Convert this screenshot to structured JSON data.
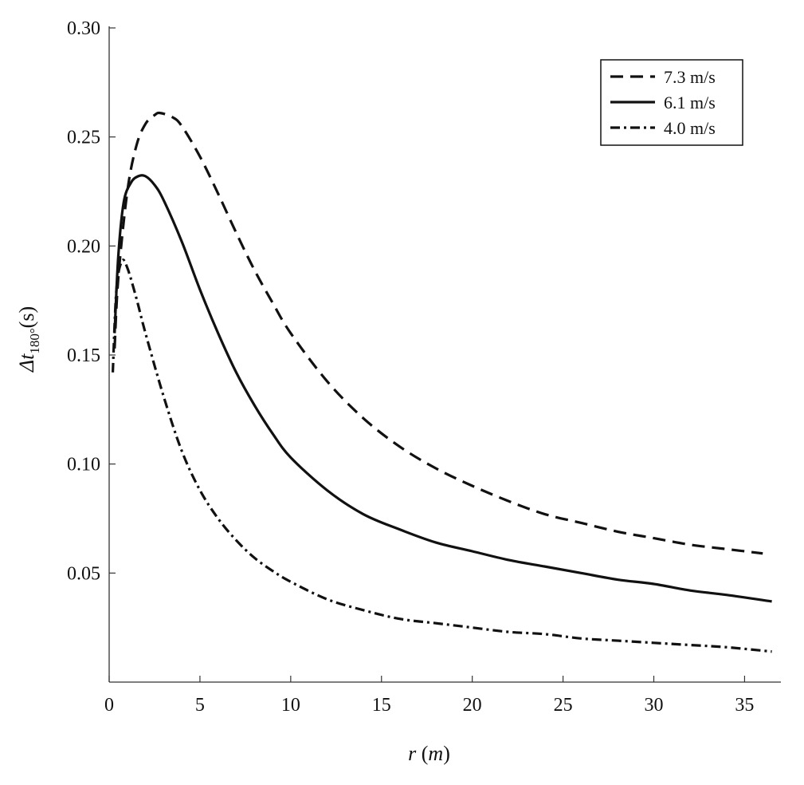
{
  "chart_data": {
    "type": "line",
    "title": "",
    "xlabel": {
      "var": "r",
      "unit": "m"
    },
    "ylabel": {
      "prefix": "Δt",
      "sub": "180°",
      "suffix": "(s)"
    },
    "xlim": [
      0,
      37
    ],
    "ylim": [
      0,
      0.3
    ],
    "xticks": [
      0,
      5,
      10,
      15,
      20,
      25,
      30,
      35
    ],
    "yticks": [
      0.05,
      0.1,
      0.15,
      0.2,
      0.25,
      0.3
    ],
    "xtick_labels": [
      "0",
      "5",
      "10",
      "15",
      "20",
      "25",
      "30",
      "35"
    ],
    "ytick_labels": [
      "0.05",
      "0.10",
      "0.15",
      "0.20",
      "0.25",
      "0.30"
    ],
    "grid": false,
    "legend_position": "top-right",
    "colors": {
      "line": "#111111",
      "axis": "#333333",
      "background": "#ffffff"
    },
    "series": [
      {
        "name": "7.3 m/s",
        "style": "dashed",
        "x": [
          0.3,
          0.5,
          1.0,
          1.5,
          2.0,
          2.5,
          2.8,
          3.5,
          4,
          5,
          6,
          7,
          8,
          9,
          10,
          12,
          14,
          16,
          18,
          20,
          22,
          24,
          26,
          28,
          30,
          32,
          34,
          36
        ],
        "y": [
          0.153,
          0.185,
          0.225,
          0.246,
          0.256,
          0.26,
          0.261,
          0.259,
          0.255,
          0.241,
          0.224,
          0.206,
          0.189,
          0.174,
          0.16,
          0.138,
          0.121,
          0.108,
          0.098,
          0.09,
          0.083,
          0.077,
          0.073,
          0.069,
          0.066,
          0.063,
          0.061,
          0.059
        ]
      },
      {
        "name": "6.1 m/s",
        "style": "solid",
        "x": [
          0.3,
          0.5,
          0.8,
          1.2,
          1.6,
          2.0,
          2.5,
          3,
          4,
          5,
          6,
          7,
          8,
          9,
          10,
          12,
          14,
          16,
          18,
          20,
          22,
          24,
          26,
          28,
          30,
          32,
          34,
          36.5
        ],
        "y": [
          0.16,
          0.195,
          0.22,
          0.229,
          0.232,
          0.232,
          0.228,
          0.221,
          0.202,
          0.18,
          0.16,
          0.142,
          0.127,
          0.114,
          0.103,
          0.088,
          0.077,
          0.07,
          0.064,
          0.06,
          0.056,
          0.053,
          0.05,
          0.047,
          0.045,
          0.042,
          0.04,
          0.037
        ]
      },
      {
        "name": "4.0 m/s",
        "style": "dashdot",
        "x": [
          0.2,
          0.4,
          0.7,
          1.0,
          1.5,
          2.0,
          3,
          4,
          5,
          6,
          7,
          8,
          9,
          10,
          12,
          14,
          16,
          18,
          20,
          22,
          24,
          26,
          28,
          30,
          32,
          34,
          36.5
        ],
        "y": [
          0.142,
          0.18,
          0.193,
          0.19,
          0.176,
          0.16,
          0.131,
          0.106,
          0.088,
          0.075,
          0.065,
          0.057,
          0.051,
          0.046,
          0.038,
          0.033,
          0.029,
          0.027,
          0.025,
          0.023,
          0.022,
          0.02,
          0.019,
          0.018,
          0.017,
          0.016,
          0.014
        ]
      }
    ]
  }
}
